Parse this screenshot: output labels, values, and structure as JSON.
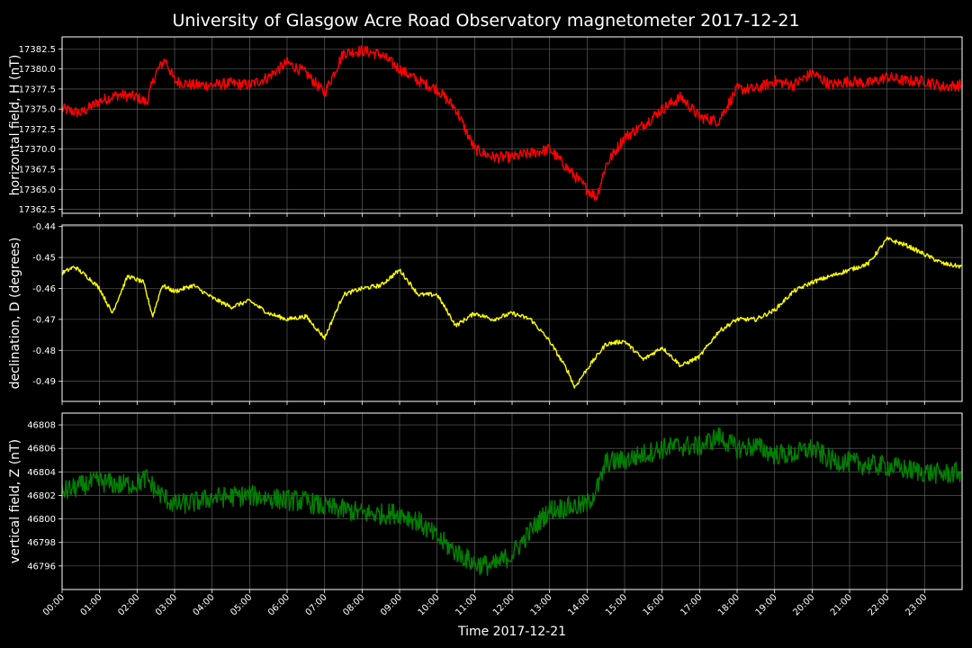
{
  "chart_data": {
    "type": "line",
    "title": "University of Glasgow Acre Road Observatory magnetometer 2017-12-21",
    "xlabel": "Time 2017-12-21",
    "x_ticks": [
      "00:00",
      "01:00",
      "02:00",
      "03:00",
      "04:00",
      "05:00",
      "06:00",
      "07:00",
      "08:00",
      "09:00",
      "10:00",
      "11:00",
      "12:00",
      "13:00",
      "14:00",
      "15:00",
      "16:00",
      "17:00",
      "18:00",
      "19:00",
      "20:00",
      "21:00",
      "22:00",
      "23:00"
    ],
    "xlim": [
      "00:00",
      "24:00"
    ],
    "grid": true,
    "panels": [
      {
        "ylabel": "horizontal field, H (nT)",
        "color": "#ff0000",
        "ylim": [
          17362.0,
          17384.0
        ],
        "y_ticks": [
          "17362.5",
          "17365.0",
          "17367.5",
          "17370.0",
          "17372.5",
          "17375.0",
          "17377.5",
          "17380.0",
          "17382.5"
        ],
        "y_tick_values": [
          17362.5,
          17365.0,
          17367.5,
          17370.0,
          17372.5,
          17375.0,
          17377.5,
          17380.0,
          17382.5
        ],
        "noise": 0.7,
        "series": [
          {
            "x": "00:00",
            "y": 17375.0
          },
          {
            "x": "00:30",
            "y": 17374.5
          },
          {
            "x": "01:00",
            "y": 17376.0
          },
          {
            "x": "01:30",
            "y": 17376.8
          },
          {
            "x": "02:00",
            "y": 17376.5
          },
          {
            "x": "02:15",
            "y": 17375.8
          },
          {
            "x": "02:30",
            "y": 17379.5
          },
          {
            "x": "02:45",
            "y": 17381.2
          },
          {
            "x": "03:00",
            "y": 17378.5
          },
          {
            "x": "03:30",
            "y": 17378.0
          },
          {
            "x": "04:00",
            "y": 17378.0
          },
          {
            "x": "04:30",
            "y": 17378.2
          },
          {
            "x": "05:00",
            "y": 17378.0
          },
          {
            "x": "05:30",
            "y": 17379.0
          },
          {
            "x": "06:00",
            "y": 17380.8
          },
          {
            "x": "06:30",
            "y": 17379.5
          },
          {
            "x": "07:00",
            "y": 17377.0
          },
          {
            "x": "07:30",
            "y": 17382.0
          },
          {
            "x": "08:00",
            "y": 17382.3
          },
          {
            "x": "08:30",
            "y": 17381.8
          },
          {
            "x": "09:00",
            "y": 17380.0
          },
          {
            "x": "09:30",
            "y": 17378.5
          },
          {
            "x": "10:00",
            "y": 17377.5
          },
          {
            "x": "10:30",
            "y": 17375.0
          },
          {
            "x": "11:00",
            "y": 17370.0
          },
          {
            "x": "11:30",
            "y": 17369.0
          },
          {
            "x": "12:00",
            "y": 17369.0
          },
          {
            "x": "12:30",
            "y": 17369.5
          },
          {
            "x": "13:00",
            "y": 17370.0
          },
          {
            "x": "13:30",
            "y": 17367.5
          },
          {
            "x": "14:00",
            "y": 17365.0
          },
          {
            "x": "14:15",
            "y": 17364.0
          },
          {
            "x": "14:30",
            "y": 17368.0
          },
          {
            "x": "15:00",
            "y": 17371.5
          },
          {
            "x": "15:30",
            "y": 17373.0
          },
          {
            "x": "16:00",
            "y": 17375.0
          },
          {
            "x": "16:30",
            "y": 17376.5
          },
          {
            "x": "17:00",
            "y": 17374.0
          },
          {
            "x": "17:30",
            "y": 17373.5
          },
          {
            "x": "18:00",
            "y": 17377.5
          },
          {
            "x": "18:30",
            "y": 17377.5
          },
          {
            "x": "19:00",
            "y": 17378.5
          },
          {
            "x": "19:30",
            "y": 17378.0
          },
          {
            "x": "20:00",
            "y": 17379.5
          },
          {
            "x": "20:30",
            "y": 17378.0
          },
          {
            "x": "21:00",
            "y": 17378.5
          },
          {
            "x": "21:30",
            "y": 17378.2
          },
          {
            "x": "22:00",
            "y": 17379.0
          },
          {
            "x": "22:30",
            "y": 17378.5
          },
          {
            "x": "23:00",
            "y": 17378.5
          },
          {
            "x": "23:30",
            "y": 17377.8
          },
          {
            "x": "24:00",
            "y": 17378.0
          }
        ]
      },
      {
        "ylabel": "declination, D (degrees)",
        "color": "#ffff00",
        "ylim": [
          -0.4965,
          -0.4395
        ],
        "y_ticks": [
          "-0.49",
          "-0.48",
          "-0.47",
          "-0.46",
          "-0.45",
          "-0.44"
        ],
        "y_tick_values": [
          -0.49,
          -0.48,
          -0.47,
          -0.46,
          -0.45,
          -0.44
        ],
        "noise": 0.0007,
        "series": [
          {
            "x": "00:00",
            "y": -0.455
          },
          {
            "x": "00:20",
            "y": -0.453
          },
          {
            "x": "00:45",
            "y": -0.457
          },
          {
            "x": "01:00",
            "y": -0.46
          },
          {
            "x": "01:20",
            "y": -0.468
          },
          {
            "x": "01:45",
            "y": -0.456
          },
          {
            "x": "02:10",
            "y": -0.458
          },
          {
            "x": "02:25",
            "y": -0.469
          },
          {
            "x": "02:40",
            "y": -0.459
          },
          {
            "x": "03:00",
            "y": -0.461
          },
          {
            "x": "03:30",
            "y": -0.459
          },
          {
            "x": "04:00",
            "y": -0.463
          },
          {
            "x": "04:30",
            "y": -0.466
          },
          {
            "x": "05:00",
            "y": -0.464
          },
          {
            "x": "05:30",
            "y": -0.468
          },
          {
            "x": "06:00",
            "y": -0.47
          },
          {
            "x": "06:30",
            "y": -0.469
          },
          {
            "x": "07:00",
            "y": -0.476
          },
          {
            "x": "07:30",
            "y": -0.462
          },
          {
            "x": "08:00",
            "y": -0.46
          },
          {
            "x": "08:30",
            "y": -0.459
          },
          {
            "x": "09:00",
            "y": -0.454
          },
          {
            "x": "09:30",
            "y": -0.462
          },
          {
            "x": "10:00",
            "y": -0.462
          },
          {
            "x": "10:30",
            "y": -0.472
          },
          {
            "x": "11:00",
            "y": -0.468
          },
          {
            "x": "11:30",
            "y": -0.47
          },
          {
            "x": "12:00",
            "y": -0.468
          },
          {
            "x": "12:30",
            "y": -0.47
          },
          {
            "x": "13:00",
            "y": -0.477
          },
          {
            "x": "13:30",
            "y": -0.487
          },
          {
            "x": "13:40",
            "y": -0.492
          },
          {
            "x": "14:00",
            "y": -0.486
          },
          {
            "x": "14:30",
            "y": -0.478
          },
          {
            "x": "15:00",
            "y": -0.477
          },
          {
            "x": "15:30",
            "y": -0.483
          },
          {
            "x": "16:00",
            "y": -0.479
          },
          {
            "x": "16:30",
            "y": -0.485
          },
          {
            "x": "17:00",
            "y": -0.482
          },
          {
            "x": "17:30",
            "y": -0.474
          },
          {
            "x": "18:00",
            "y": -0.47
          },
          {
            "x": "18:30",
            "y": -0.47
          },
          {
            "x": "19:00",
            "y": -0.467
          },
          {
            "x": "19:30",
            "y": -0.461
          },
          {
            "x": "20:00",
            "y": -0.458
          },
          {
            "x": "20:30",
            "y": -0.456
          },
          {
            "x": "21:00",
            "y": -0.454
          },
          {
            "x": "21:30",
            "y": -0.452
          },
          {
            "x": "22:00",
            "y": -0.444
          },
          {
            "x": "22:30",
            "y": -0.446
          },
          {
            "x": "23:00",
            "y": -0.449
          },
          {
            "x": "23:30",
            "y": -0.452
          },
          {
            "x": "24:00",
            "y": -0.453
          }
        ]
      },
      {
        "ylabel": "vertical field, Z (nT)",
        "color": "#008000",
        "ylim": [
          46794.0,
          46809.0
        ],
        "y_ticks": [
          "46796",
          "46798",
          "46800",
          "46802",
          "46804",
          "46806",
          "46808"
        ],
        "y_tick_values": [
          46796,
          46798,
          46800,
          46802,
          46804,
          46806,
          46808
        ],
        "noise": 0.9,
        "series": [
          {
            "x": "00:00",
            "y": 46802.3
          },
          {
            "x": "00:30",
            "y": 46802.8
          },
          {
            "x": "01:00",
            "y": 46803.2
          },
          {
            "x": "01:30",
            "y": 46802.9
          },
          {
            "x": "02:00",
            "y": 46803.0
          },
          {
            "x": "02:15",
            "y": 46803.5
          },
          {
            "x": "02:30",
            "y": 46802.4
          },
          {
            "x": "03:00",
            "y": 46801.2
          },
          {
            "x": "03:30",
            "y": 46801.4
          },
          {
            "x": "04:00",
            "y": 46801.8
          },
          {
            "x": "04:30",
            "y": 46801.9
          },
          {
            "x": "05:00",
            "y": 46802.0
          },
          {
            "x": "05:30",
            "y": 46801.8
          },
          {
            "x": "06:00",
            "y": 46801.6
          },
          {
            "x": "06:30",
            "y": 46801.5
          },
          {
            "x": "07:00",
            "y": 46801.0
          },
          {
            "x": "07:30",
            "y": 46800.8
          },
          {
            "x": "08:00",
            "y": 46800.5
          },
          {
            "x": "08:30",
            "y": 46800.4
          },
          {
            "x": "09:00",
            "y": 46800.5
          },
          {
            "x": "09:30",
            "y": 46799.8
          },
          {
            "x": "10:00",
            "y": 46798.4
          },
          {
            "x": "10:30",
            "y": 46797.2
          },
          {
            "x": "11:00",
            "y": 46796.2
          },
          {
            "x": "11:30",
            "y": 46796.0
          },
          {
            "x": "12:00",
            "y": 46797.0
          },
          {
            "x": "12:30",
            "y": 46799.0
          },
          {
            "x": "13:00",
            "y": 46800.8
          },
          {
            "x": "13:30",
            "y": 46801.0
          },
          {
            "x": "14:00",
            "y": 46801.2
          },
          {
            "x": "14:20",
            "y": 46803.0
          },
          {
            "x": "14:30",
            "y": 46804.8
          },
          {
            "x": "15:00",
            "y": 46805.0
          },
          {
            "x": "15:30",
            "y": 46805.5
          },
          {
            "x": "16:00",
            "y": 46806.0
          },
          {
            "x": "16:30",
            "y": 46806.2
          },
          {
            "x": "17:00",
            "y": 46806.2
          },
          {
            "x": "17:30",
            "y": 46807.0
          },
          {
            "x": "18:00",
            "y": 46806.0
          },
          {
            "x": "18:30",
            "y": 46806.2
          },
          {
            "x": "19:00",
            "y": 46805.5
          },
          {
            "x": "19:30",
            "y": 46805.5
          },
          {
            "x": "20:00",
            "y": 46806.0
          },
          {
            "x": "20:30",
            "y": 46805.0
          },
          {
            "x": "21:00",
            "y": 46804.8
          },
          {
            "x": "21:30",
            "y": 46804.6
          },
          {
            "x": "22:00",
            "y": 46804.5
          },
          {
            "x": "22:30",
            "y": 46804.2
          },
          {
            "x": "23:00",
            "y": 46804.0
          },
          {
            "x": "23:30",
            "y": 46803.8
          },
          {
            "x": "24:00",
            "y": 46804.0
          }
        ]
      }
    ]
  }
}
